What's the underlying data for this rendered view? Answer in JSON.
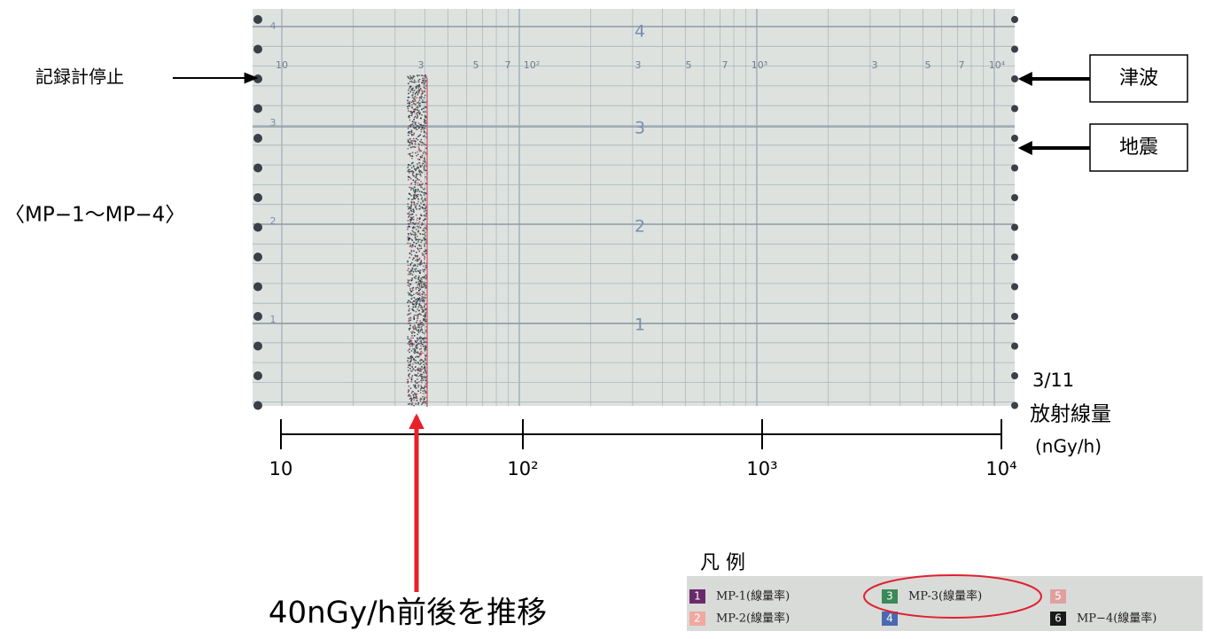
{
  "annotations": {
    "recorder_stop": "記録計停止",
    "channels": "〈MP−1〜MP−4〉",
    "tsunami": "津波",
    "earthquake": "地震",
    "date": "3/11",
    "quantity": "放射線量",
    "unit": "(nGy/h)",
    "trend": "40nGy/h前後を推移"
  },
  "axis": {
    "labels": [
      "10",
      "10²",
      "10³",
      "10⁴"
    ]
  },
  "paper": {
    "scale": [
      "10",
      "3",
      "5",
      "7",
      "10²",
      "3",
      "5",
      "7",
      "10³",
      "3",
      "5",
      "7",
      "10⁴"
    ],
    "hours": [
      "4",
      "3",
      "2",
      "1"
    ],
    "edge_hours": [
      "4",
      "3",
      "2",
      "1"
    ]
  },
  "legend": {
    "title": "凡 例",
    "items": [
      {
        "number": "1",
        "label": "MP-1(線量率)"
      },
      {
        "number": "2",
        "label": "MP-2(線量率)"
      },
      {
        "number": "3",
        "label": "MP-3(線量率)"
      },
      {
        "number": "4"
      },
      {
        "number": "5"
      },
      {
        "number": "6",
        "label": "MP−4(線量率)"
      }
    ]
  }
}
